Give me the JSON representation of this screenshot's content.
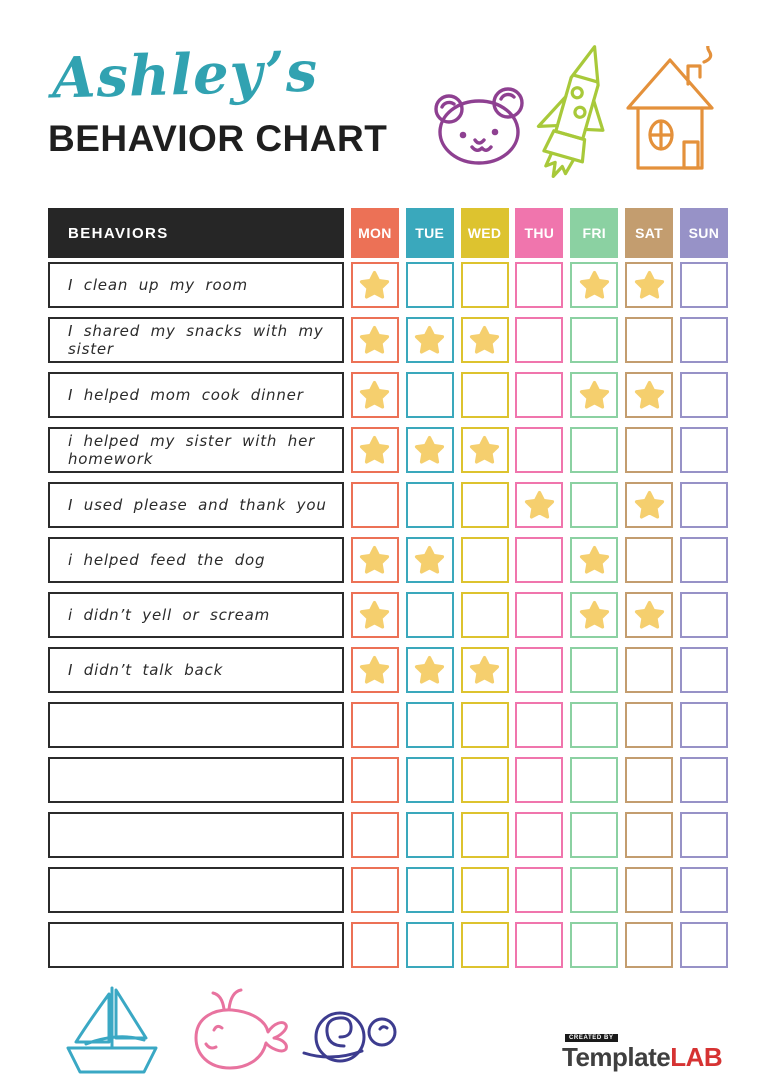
{
  "header": {
    "script_title": "Ashley’s",
    "main_title": "BEHAVIOR CHART"
  },
  "table": {
    "behaviors_header": "BEHAVIORS",
    "header_bg": "#262626",
    "star_color": "#F5CF6E",
    "days": [
      {
        "label": "MON",
        "color": "#EC7156"
      },
      {
        "label": "TUE",
        "color": "#3AA8BC"
      },
      {
        "label": "WED",
        "color": "#DDC32F"
      },
      {
        "label": "THU",
        "color": "#F075AD"
      },
      {
        "label": "FRI",
        "color": "#8BD1A2"
      },
      {
        "label": "SAT",
        "color": "#C39D6F"
      },
      {
        "label": "SUN",
        "color": "#9792C7"
      }
    ],
    "rows": [
      {
        "label": "I clean up my room",
        "stars": [
          1,
          0,
          0,
          0,
          1,
          1,
          0
        ]
      },
      {
        "label": "I shared my snacks with my sister",
        "stars": [
          1,
          1,
          1,
          0,
          0,
          0,
          0
        ]
      },
      {
        "label": "I helped mom cook dinner",
        "stars": [
          1,
          0,
          0,
          0,
          1,
          1,
          0
        ]
      },
      {
        "label": "i helped my sister with her homework",
        "stars": [
          1,
          1,
          1,
          0,
          0,
          0,
          0
        ]
      },
      {
        "label": "I used please and thank you",
        "stars": [
          0,
          0,
          0,
          1,
          0,
          1,
          0
        ]
      },
      {
        "label": "i helped feed the dog",
        "stars": [
          1,
          1,
          0,
          0,
          1,
          0,
          0
        ]
      },
      {
        "label": "i didn’t yell or scream",
        "stars": [
          1,
          0,
          0,
          0,
          1,
          1,
          0
        ]
      },
      {
        "label": "I didn’t talk back",
        "stars": [
          1,
          1,
          1,
          0,
          0,
          0,
          0
        ]
      },
      {
        "label": "",
        "stars": [
          0,
          0,
          0,
          0,
          0,
          0,
          0
        ]
      },
      {
        "label": "",
        "stars": [
          0,
          0,
          0,
          0,
          0,
          0,
          0
        ]
      },
      {
        "label": "",
        "stars": [
          0,
          0,
          0,
          0,
          0,
          0,
          0
        ]
      },
      {
        "label": "",
        "stars": [
          0,
          0,
          0,
          0,
          0,
          0,
          0
        ]
      },
      {
        "label": "",
        "stars": [
          0,
          0,
          0,
          0,
          0,
          0,
          0
        ]
      }
    ]
  },
  "palette": {
    "title_script": "#31A2B1",
    "bear": "#8E4091",
    "rocket": "#A8C93A",
    "house": "#E4913B",
    "boat": "#3AA8C4",
    "whale": "#E8739F",
    "snail": "#3D3C8F"
  },
  "footer": {
    "created_by": "CREATED BY",
    "brand_name": "Template",
    "brand_suffix": "LAB",
    "brand_accent": "#D63333"
  }
}
